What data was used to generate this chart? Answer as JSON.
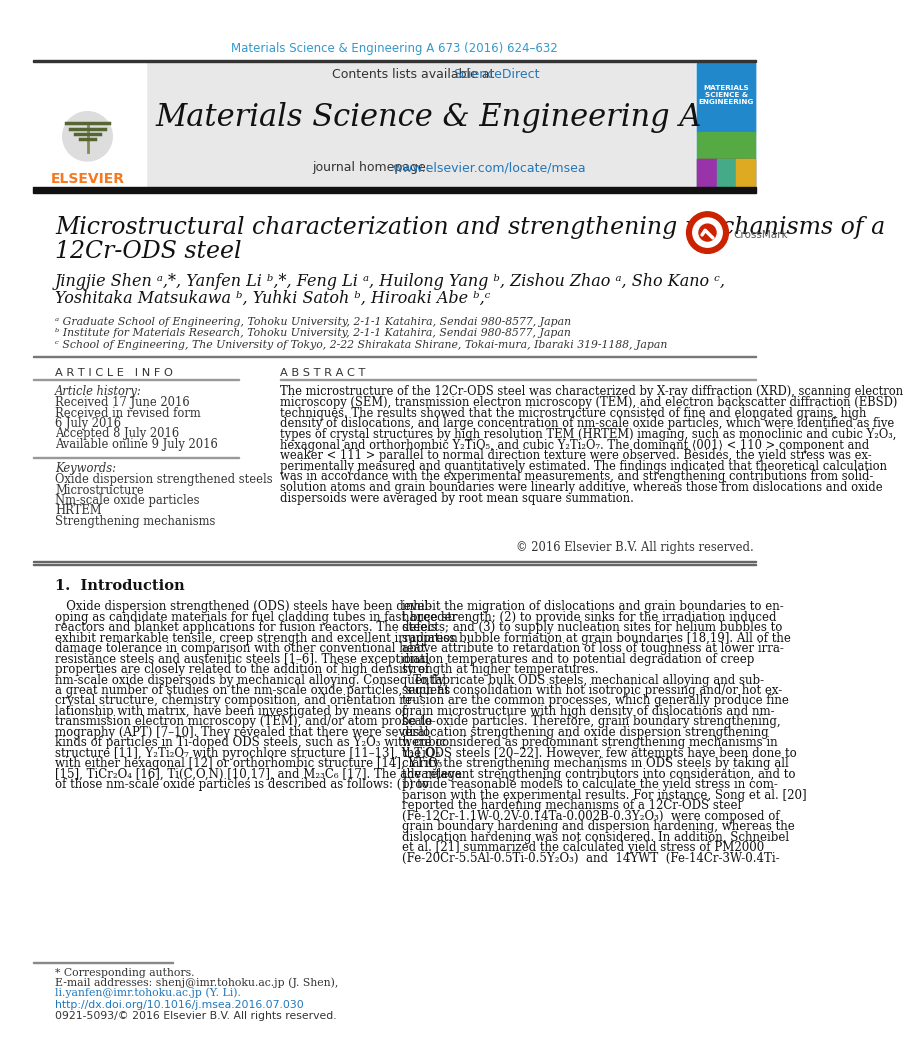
{
  "journal_ref": "Materials Science & Engineering A 673 (2016) 624–632",
  "journal_name": "Materials Science & Engineering A",
  "homepage_url": "www.elsevier.com/locate/msea",
  "paper_title_line1": "Microstructural characterization and strengthening mechanisms of a",
  "paper_title_line2": "12Cr-ODS steel",
  "authors_line1": "Jingjie Shen ᵃ,*, Yanfen Li ᵇ,*, Feng Li ᵃ, Huilong Yang ᵇ, Zishou Zhao ᵃ, Sho Kano ᶜ,",
  "authors_line2": "Yoshitaka Matsukawa ᵇ, Yuhki Satoh ᵇ, Hiroaki Abe ᵇ,ᶜ",
  "affil_a": "ᵃ Graduate School of Engineering, Tohoku University, 2-1-1 Katahira, Sendai 980-8577, Japan",
  "affil_b": "ᵇ Institute for Materials Research, Tohoku University, 2-1-1 Katahira, Sendai 980-8577, Japan",
  "affil_c": "ᶜ School of Engineering, The University of Tokyo, 2-22 Shirakata Shirane, Tokai-mura, Ibaraki 319-1188, Japan",
  "article_info_header": "A R T I C L E   I N F O",
  "abstract_header": "A B S T R A C T",
  "article_history_label": "Article history:",
  "received1": "Received 17 June 2016",
  "received2": "Received in revised form",
  "received3": "6 July 2016",
  "accepted": "Accepted 8 July 2016",
  "available": "Available online 9 July 2016",
  "keywords_label": "Keywords:",
  "keyword1": "Oxide dispersion strengthened steels",
  "keyword2": "Microstructure",
  "keyword3": "Nm-scale oxide particles",
  "keyword4": "HRTEM",
  "keyword5": "Strengthening mechanisms",
  "abstract_text": "The microstructure of the 12Cr-ODS steel was characterized by X-ray diffraction (XRD), scanning electron\nmicroscopy (SEM), transmission electron microscopy (TEM), and electron backscatter diffraction (EBSD)\ntechniques. The results showed that the microstructure consisted of fine and elongated grains, high\ndensity of dislocations, and large concentration of nm-scale oxide particles, which were identified as five\ntypes of crystal structures by high resolution TEM (HRTEM) imaging, such as monoclinic and cubic Y₂O₃,\nhexagonal and orthorhombic Y₂TiO₅, and cubic Y₂Ti₂O₇. The dominant ⟨001⟩ < 110 > component and\nweaker < 111 > parallel to normal direction texture were observed. Besides, the yield stress was ex-\nperimentally measured and quantitatively estimated. The findings indicated that theoretical calculation\nwas in accordance with the experimental measurements, and strengthening contributions from solid-\nsolution atoms and grain boundaries were linearly additive, whereas those from dislocations and oxide\ndispersoids were averaged by root mean square summation.",
  "copyright_text": "© 2016 Elsevier B.V. All rights reserved.",
  "intro_header": "1.  Introduction",
  "intro_col1": "   Oxide dispersion strengthened (ODS) steels have been devel-\noping as candidate materials for fuel cladding tubes in fast breeder\nreactors and blanket applications for fusion reactors. The steels\nexhibit remarkable tensile, creep strength and excellent irradiation\ndamage tolerance in comparison with other conventional heat\nresistance steels and austenitic steels [1–6]. These exceptional\nproperties are closely related to the addition of high density of\nnm-scale oxide dispersoids by mechanical alloying. Consequently,\na great number of studies on the nm-scale oxide particles, such as\ncrystal structure, chemistry composition, and orientation re-\nlationship with matrix, have been investigated by means of\ntransmission electron microscopy (TEM), and/or atom probe to-\nmography (APT) [7–10]. They revealed that there were several\nkinds of particles in Ti-doped ODS steels, such as Y₂O₃ with cubic\nstructure [11], Y₂Ti₂O₇ with pyrochlore structure [11–13], Y₂TiO₅\nwith either hexagonal [12] or orthorhombic structure [14], YTiO₃\n[15], TiCr₂O₄ [16], Ti(C,O,N) [10,17], and M₂₃C₆ [17]. The advantage\nof those nm-scale oxide particles is described as follows: (1) to",
  "intro_col2": "inhibit the migration of dislocations and grain boundaries to en-\nhance strength; (2) to provide sinks for the irradiation induced\ndefects; and (3) to supply nucleation sites for helium bubbles to\nsuppress bubble formation at grain boundaries [18,19]. All of the\nabove attribute to retardation of loss of toughness at lower irra-\ndiation temperatures and to potential degradation of creep\nstrength at higher temperatures.\n   To fabricate bulk ODS steels, mechanical alloying and sub-\nsequent consolidation with hot isotropic pressing and/or hot ex-\ntrusion are the common processes, which generally produce fine\ngrain microstructure with high density of dislocations and nm-\nscale oxide particles. Therefore, grain boundary strengthening,\ndislocation strengthening and oxide dispersion strengthening\nwere considered as predominant strengthening mechanisms in\nthe ODS steels [20–22]. However, few attempts have been done to\nclarify the strengthening mechanisms in ODS steels by taking all\nthe relevant strengthening contributors into consideration, and to\nprovide reasonable models to calculate the yield stress in com-\nparison with the experimental results. For instance, Song et al. [20]\nreported the hardening mechanisms of a 12Cr-ODS steel\n(Fe-12Cr-1.1W-0.2V-0.14Ta-0.002B-0.3Y₂O₃)  were composed of\ngrain boundary hardening and dispersion hardening, whereas the\ndislocation hardening was not considered. In addition, Schneibel\net al. [21] summarized the calculated yield stress of PM2000\n(Fe-20Cr-5.5Al-0.5Ti-0.5Y₂O₃)  and  14YWT  (Fe-14Cr-3W-0.4Ti-",
  "footnote1": "* Corresponding authors.",
  "footnote2": "E-mail addresses: shenj@imr.tohoku.ac.jp (J. Shen),",
  "footnote3": "li.yanfen@imr.tohoku.ac.jp (Y. Li).",
  "doi_text": "http://dx.doi.org/10.1016/j.msea.2016.07.030",
  "issn_text": "0921-5093/© 2016 Elsevier B.V. All rights reserved.",
  "header_color": "#3399cc",
  "link_color": "#2277bb",
  "elsevier_orange": "#f47920",
  "bg_header": "#e8e8e8"
}
